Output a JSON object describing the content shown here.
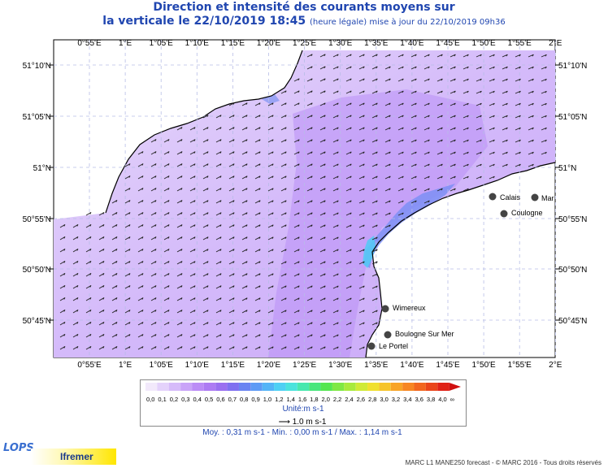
{
  "title_line1": "Direction et intensité des courants moyens sur",
  "title_line2": "la verticale le 22/10/2019 18:45",
  "title_note": "(heure légale) mise à jour du 22/10/2019 09h36",
  "lon_labels": [
    "0°55'E",
    "1°E",
    "1°05'E",
    "1°10'E",
    "1°15'E",
    "1°20'E",
    "1°25'E",
    "1°30'E",
    "1°35'E",
    "1°40'E",
    "1°45'E",
    "1°50'E",
    "1°55'E",
    "2°E"
  ],
  "lat_labels": [
    "51°10'N",
    "51°05'N",
    "51°N",
    "50°55'N",
    "50°50'N",
    "50°45'N"
  ],
  "cities": [
    "Calais",
    "Mar",
    "Coulogne",
    "Wimereux",
    "Boulogne Sur Mer",
    "Le Portel"
  ],
  "legend_values": [
    "0,0",
    "0,1",
    "0,2",
    "0,3",
    "0,4",
    "0,5",
    "0,6",
    "0,7",
    "0,8",
    "0,9",
    "1,0",
    "1,2",
    "1,4",
    "1,6",
    "1,8",
    "2,0",
    "2,2",
    "2,4",
    "2,6",
    "2,8",
    "3,0",
    "3,2",
    "3,4",
    "3,6",
    "3,8",
    "4,0",
    "∞"
  ],
  "legend_colors": [
    "#f2e9fb",
    "#e4d2fb",
    "#d6bbfa",
    "#c9a3f8",
    "#bb8cf6",
    "#ad7bf3",
    "#9a6ff0",
    "#7f70f0",
    "#6a84f2",
    "#5d9af5",
    "#54b4f7",
    "#4fd0f4",
    "#4be3dd",
    "#48e8ae",
    "#48e67c",
    "#55e650",
    "#7fe844",
    "#a8ea3d",
    "#d0ea36",
    "#f0e02e",
    "#f6c42a",
    "#f8a426",
    "#f78622",
    "#f2661e",
    "#ea451a",
    "#e02216",
    "#d01010"
  ],
  "unit_label": "Unité:m s-1",
  "scale_label": "1.0 m s-1",
  "stats": "Moy. : 0,31 m s-1   -   Min. : 0,00 m s-1 / Max. : 1,14 m s-1",
  "logo_lops": "LOPS",
  "logo_ifremer": "Ifremer",
  "footer": "MARC L1 MANE250 forecast - © MARC 2016 - Tous droits réservés"
}
